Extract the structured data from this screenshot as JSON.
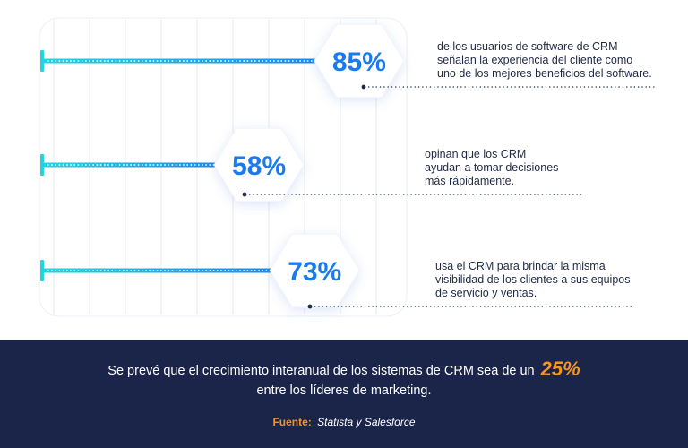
{
  "chart_data": {
    "type": "bar",
    "orientation": "horizontal",
    "categories": [
      "de los usuarios de software de CRM señalan la experiencia del cliente como uno de los mejores beneficios del software.",
      "opinan que los CRM ayudan a tomar decisiones más rápidamente.",
      "usa el CRM para brindar la misma visibilidad de los clientes a sus equipos de servicio y ventas."
    ],
    "values": [
      85,
      58,
      73
    ],
    "value_labels": [
      "85%",
      "58%",
      "73%"
    ],
    "xlim": [
      0,
      100
    ],
    "grid": true,
    "colors": {
      "bar_start": "#1fd6e0",
      "bar_end": "#1a7bf0",
      "value_text": "#1a7bf0",
      "grid": "#e6e9f0"
    }
  },
  "items": [
    {
      "lines": [
        "de los usuarios de software de CRM",
        "señalan la experiencia del cliente como",
        "uno de los mejores beneficios del software."
      ]
    },
    {
      "lines": [
        "opinan que los CRM",
        "ayudan a tomar decisiones",
        "más rápidamente."
      ]
    },
    {
      "lines": [
        "usa el CRM para brindar la misma",
        "visibilidad de los clientes a sus equipos",
        "de servicio y ventas."
      ]
    }
  ],
  "footer": {
    "text_before": "Se prevé que el crecimiento interanual de los sistemas de CRM sea de un",
    "highlight": "25%",
    "text_after": "entre los líderes de marketing.",
    "source_label": "Fuente:",
    "source_text": "Statista y Salesforce",
    "colors": {
      "background": "#1b2549",
      "accent": "#f7941d"
    }
  }
}
